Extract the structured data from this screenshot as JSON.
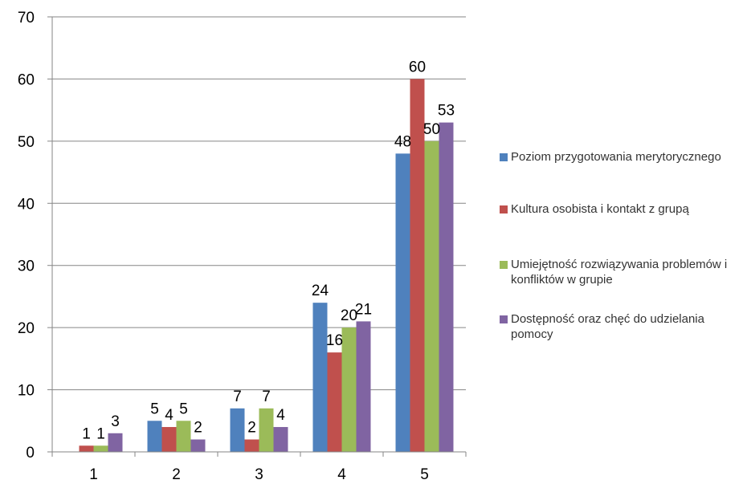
{
  "chart_data": {
    "type": "bar",
    "categories": [
      "1",
      "2",
      "3",
      "4",
      "5"
    ],
    "ylim": [
      0,
      70
    ],
    "yticks": [
      "0",
      "10",
      "20",
      "30",
      "40",
      "50",
      "60",
      "70"
    ],
    "grid": true,
    "legend_position": "right",
    "series": [
      {
        "name": "Poziom przygotowania merytorycznego",
        "color": "#4F81BD",
        "values": [
          0,
          5,
          7,
          24,
          48
        ],
        "labels": [
          "",
          "5",
          "7",
          "24",
          "48"
        ]
      },
      {
        "name": "Kultura osobista i kontakt z grupą",
        "color": "#C0504D",
        "values": [
          1,
          4,
          2,
          16,
          60
        ],
        "labels": [
          "1",
          "4",
          "2",
          "16",
          "60"
        ]
      },
      {
        "name": "Umiejętność rozwiązywania problemów i konfliktów w grupie",
        "color": "#9BBB59",
        "values": [
          1,
          5,
          7,
          20,
          50
        ],
        "labels": [
          "1",
          "5",
          "7",
          "20",
          "50"
        ]
      },
      {
        "name": "Dostępność oraz chęć do udzielania pomocy",
        "color": "#8064A2",
        "values": [
          3,
          2,
          4,
          21,
          53
        ],
        "labels": [
          "3",
          "2",
          "4",
          "21",
          "53"
        ]
      }
    ]
  }
}
